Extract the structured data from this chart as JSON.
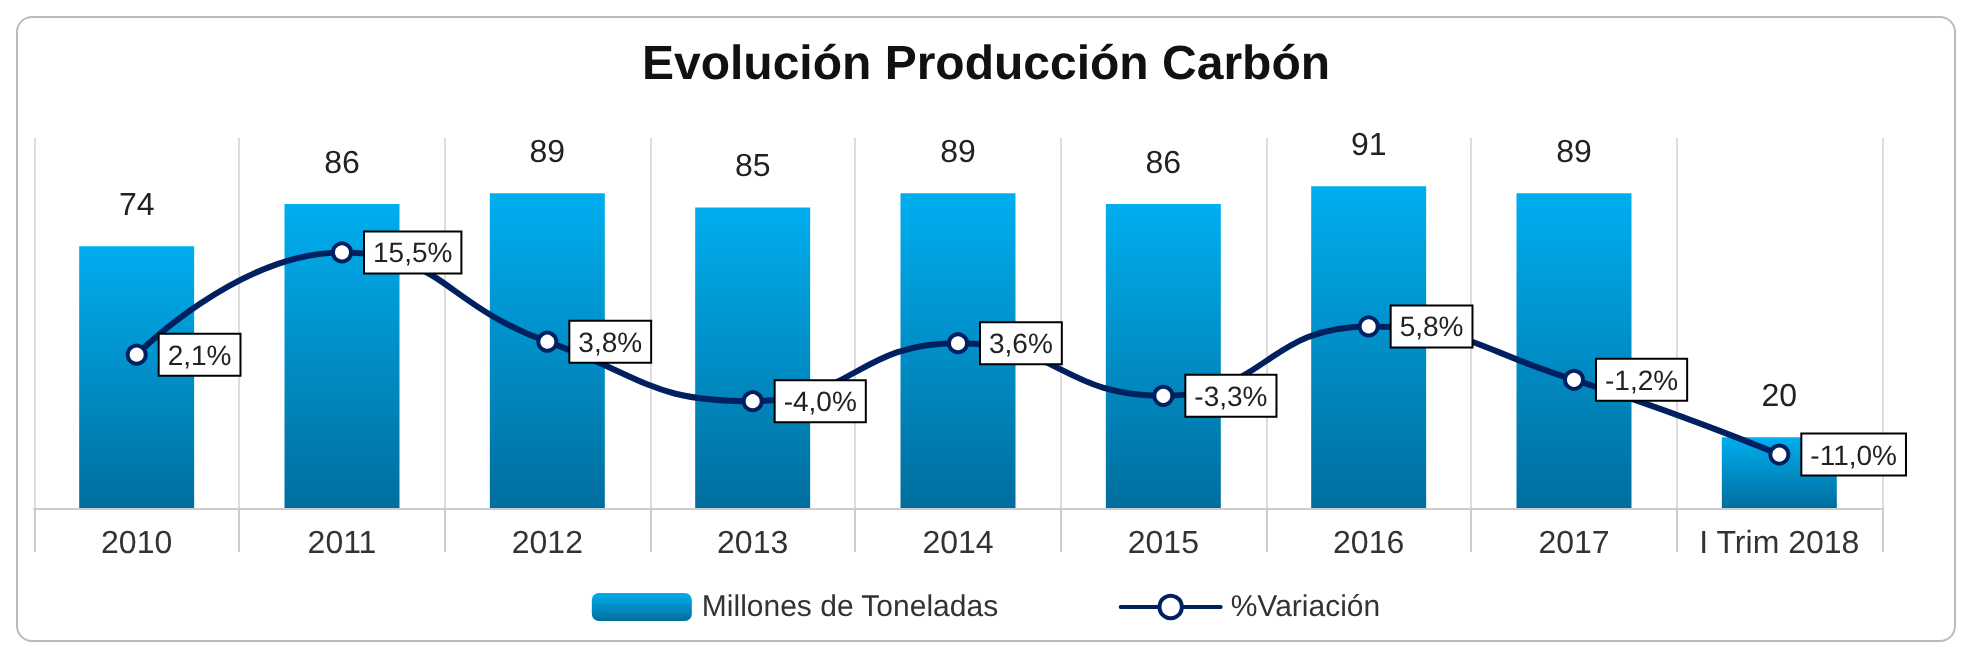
{
  "chart_data": {
    "type": "bar",
    "title": "Evolución Producción Carbón",
    "categories": [
      "2010",
      "2011",
      "2012",
      "2013",
      "2014",
      "2015",
      "2016",
      "2017",
      "I Trim 2018"
    ],
    "series": [
      {
        "name": "Millones de Toneladas",
        "color": "#00aeef",
        "values": [
          74,
          86,
          89,
          85,
          89,
          86,
          91,
          89,
          20
        ],
        "data_labels": true
      },
      {
        "name": "%Variación",
        "type": "line",
        "axis": "y2",
        "color": "#002060",
        "marker": "circle",
        "values": [
          2.1,
          15.5,
          3.8,
          -4.0,
          3.6,
          -3.3,
          5.8,
          -1.2,
          -11.0
        ],
        "value_labels": [
          "2,1%",
          "15,5%",
          "3,8%",
          "-4,0%",
          "3,6%",
          "-3,3%",
          "5,8%",
          "-1,2%",
          "-11,0%"
        ]
      }
    ],
    "tick_labels": "x",
    "grid": "x",
    "legend": "bottom"
  }
}
